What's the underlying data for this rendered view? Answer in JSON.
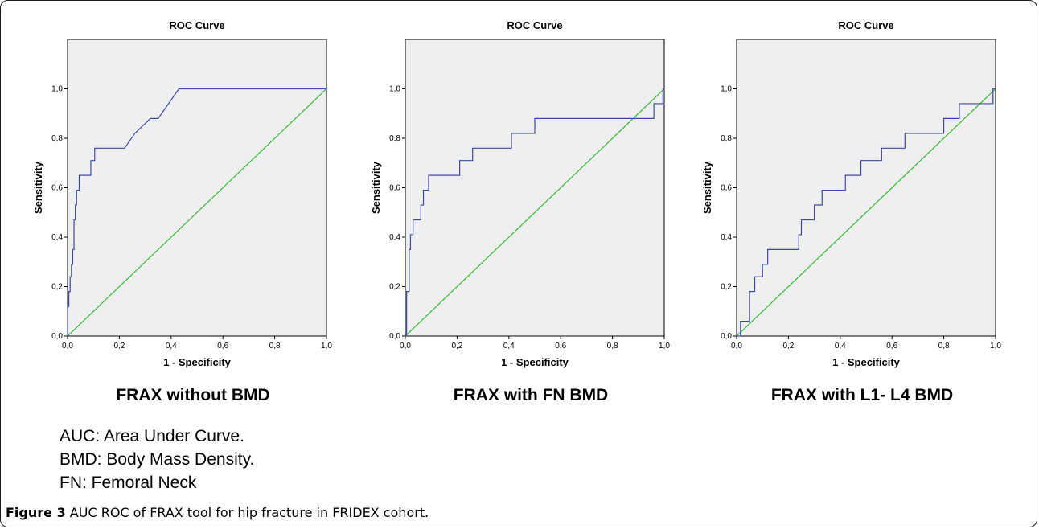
{
  "figure": {
    "legend_lines": [
      "AUC: Area Under Curve.",
      "BMD: Body Mass Density.",
      "FN: Femoral Neck"
    ],
    "caption_label": "Figure 3",
    "caption_text": "AUC ROC of FRAX tool for hip fracture in FRIDEX cohort."
  },
  "colors": {
    "roc": "#3a4aa8",
    "reference": "#33bb33",
    "plot_bg": "#efefef",
    "axis": "#000000"
  },
  "chart_data": [
    {
      "type": "line",
      "title": "ROC Curve",
      "panel_label": "FRAX without BMD",
      "xlabel": "1 - Specificity",
      "ylabel": "Sensitivity",
      "xlim": [
        0,
        1.0
      ],
      "ylim": [
        0,
        1.2
      ],
      "xticks": [
        "0,0",
        "0,2",
        "0,4",
        "0,6",
        "0,8",
        "1,0"
      ],
      "yticks": [
        "0,0",
        "0,2",
        "0,4",
        "0,6",
        "0,8",
        "1,0"
      ],
      "grid": false,
      "series": [
        {
          "role": "roc",
          "x": [
            0,
            0,
            0.005,
            0.005,
            0.01,
            0.01,
            0.015,
            0.015,
            0.02,
            0.02,
            0.025,
            0.025,
            0.03,
            0.03,
            0.035,
            0.035,
            0.045,
            0.045,
            0.09,
            0.09,
            0.105,
            0.105,
            0.12,
            0.12,
            0.14,
            0.14,
            0.22,
            0.26,
            0.32,
            0.35,
            0.43,
            1.0
          ],
          "y": [
            0,
            0.12,
            0.12,
            0.18,
            0.18,
            0.24,
            0.24,
            0.29,
            0.29,
            0.35,
            0.35,
            0.47,
            0.47,
            0.53,
            0.53,
            0.59,
            0.59,
            0.65,
            0.65,
            0.71,
            0.71,
            0.76,
            0.76,
            0.76,
            0.76,
            0.76,
            0.76,
            0.82,
            0.88,
            0.88,
            1.0,
            1.0
          ]
        },
        {
          "role": "reference",
          "x": [
            0,
            1.0
          ],
          "y": [
            0,
            1.0
          ]
        }
      ]
    },
    {
      "type": "line",
      "title": "ROC Curve",
      "panel_label": "FRAX with FN BMD",
      "xlabel": "1 - Specificity",
      "ylabel": "Sensitivity",
      "xlim": [
        0,
        1.0
      ],
      "ylim": [
        0,
        1.2
      ],
      "xticks": [
        "0,0",
        "0,2",
        "0,4",
        "0,6",
        "0,8",
        "1,0"
      ],
      "yticks": [
        "0,0",
        "0,2",
        "0,4",
        "0,6",
        "0,8",
        "1,0"
      ],
      "grid": false,
      "series": [
        {
          "role": "roc",
          "x": [
            0,
            0.005,
            0.005,
            0.015,
            0.015,
            0.02,
            0.02,
            0.03,
            0.03,
            0.06,
            0.06,
            0.07,
            0.07,
            0.09,
            0.09,
            0.11,
            0.11,
            0.21,
            0.21,
            0.26,
            0.26,
            0.41,
            0.41,
            0.5,
            0.5,
            0.96,
            0.96,
            0.995,
            0.995,
            1.0
          ],
          "y": [
            0,
            0,
            0.18,
            0.18,
            0.35,
            0.35,
            0.41,
            0.41,
            0.47,
            0.47,
            0.53,
            0.53,
            0.59,
            0.59,
            0.65,
            0.65,
            0.65,
            0.65,
            0.71,
            0.71,
            0.76,
            0.76,
            0.82,
            0.82,
            0.88,
            0.88,
            0.94,
            0.94,
            1.0,
            1.0
          ]
        },
        {
          "role": "reference",
          "x": [
            0,
            1.0
          ],
          "y": [
            0,
            1.0
          ]
        }
      ]
    },
    {
      "type": "line",
      "title": "ROC Curve",
      "panel_label": "FRAX with L1- L4 BMD",
      "xlabel": "1 - Specificity",
      "ylabel": "Sensitivity",
      "xlim": [
        0,
        1.0
      ],
      "ylim": [
        0,
        1.2
      ],
      "xticks": [
        "0,0",
        "0,2",
        "0,4",
        "0,6",
        "0,8",
        "1,0"
      ],
      "yticks": [
        "0,0",
        "0,2",
        "0,4",
        "0,6",
        "0,8",
        "1,0"
      ],
      "grid": false,
      "series": [
        {
          "role": "roc",
          "x": [
            0,
            0.015,
            0.015,
            0.05,
            0.05,
            0.07,
            0.07,
            0.1,
            0.1,
            0.12,
            0.12,
            0.24,
            0.24,
            0.25,
            0.25,
            0.3,
            0.3,
            0.33,
            0.33,
            0.42,
            0.42,
            0.48,
            0.48,
            0.56,
            0.56,
            0.65,
            0.65,
            0.8,
            0.8,
            0.86,
            0.86,
            0.99,
            0.99,
            1.0
          ],
          "y": [
            0,
            0,
            0.06,
            0.06,
            0.18,
            0.18,
            0.24,
            0.24,
            0.29,
            0.29,
            0.35,
            0.35,
            0.41,
            0.41,
            0.47,
            0.47,
            0.53,
            0.53,
            0.59,
            0.59,
            0.65,
            0.65,
            0.71,
            0.71,
            0.76,
            0.76,
            0.82,
            0.82,
            0.88,
            0.88,
            0.94,
            0.94,
            1.0,
            1.0
          ]
        },
        {
          "role": "reference",
          "x": [
            0,
            1.0
          ],
          "y": [
            0,
            1.0
          ]
        }
      ]
    }
  ]
}
